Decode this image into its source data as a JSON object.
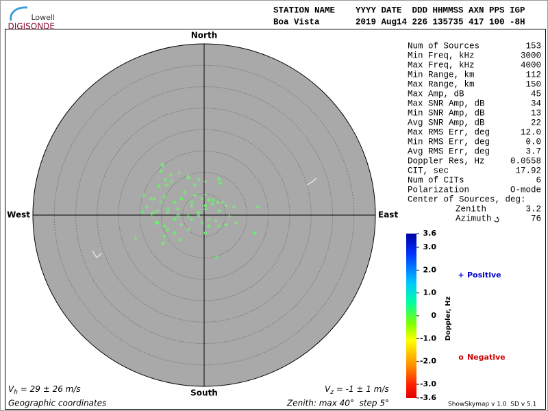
{
  "logo": {
    "top": "Lowell",
    "bottom": "DIGISONDE"
  },
  "header": {
    "labels": "STATION NAME    YYYY DATE  DDD HHMMSS AXN PPS IGP",
    "values": "Boa Vista       2019 Aug14 226 135735 417 100 -8H"
  },
  "stats": {
    "rows": [
      {
        "label": "Num of Sources",
        "value": "153"
      },
      {
        "label": "Min Freq, kHz",
        "value": "3000"
      },
      {
        "label": "Max Freq, kHz",
        "value": "4000"
      },
      {
        "label": "Min Range, km",
        "value": "112"
      },
      {
        "label": "Max Range, km",
        "value": "150"
      },
      {
        "label": "Max Amp, dB",
        "value": "45"
      },
      {
        "label": "Max SNR Amp, dB",
        "value": "34"
      },
      {
        "label": "Min SNR Amp, dB",
        "value": "13"
      },
      {
        "label": "Avg SNR Amp, dB",
        "value": "22"
      },
      {
        "label": "Max RMS Err, deg",
        "value": "12.0"
      },
      {
        "label": "Min RMS Err, deg",
        "value": "0.0"
      },
      {
        "label": "Avg RMS Err, deg",
        "value": "3.7"
      },
      {
        "label": "Doppler Res, Hz",
        "value": "0.0558"
      },
      {
        "label": "CIT, sec",
        "value": "17.92"
      },
      {
        "label": "Num of CITs",
        "value": "6"
      },
      {
        "label": "Polarization",
        "value": "O-mode"
      }
    ],
    "center_title": "Center of Sources, deg:",
    "center": [
      {
        "label": "Zenith",
        "value": "3.2"
      },
      {
        "label": "Azimuth",
        "value": "76"
      }
    ]
  },
  "chart_data": {
    "type": "skymap",
    "directions": {
      "north": "North",
      "south": "South",
      "east": "East",
      "west": "West"
    },
    "xlim": [
      -40,
      40
    ],
    "ylim": [
      -40,
      40
    ],
    "rings": [
      5,
      10,
      15,
      20,
      25,
      30,
      35
    ],
    "background": "#a9a9a9",
    "series": [
      {
        "name": "Positive",
        "marker": "+",
        "color": "#0000cc",
        "point_color": "#66ff66",
        "x": [
          -9.6,
          -10.1,
          -7.7,
          -5.8,
          -3.7,
          0.3,
          3.8,
          -8.8,
          -10.6,
          -14.1,
          -11.7,
          -9.3,
          -6.9,
          -4.5,
          -2.1,
          -0.5,
          1.1,
          3.2,
          5.1,
          12.6,
          -13.3,
          -10.9,
          -8.5,
          -6.1,
          -2.9,
          -1.3,
          0.3,
          1.9,
          3.5,
          5.9,
          -11.2,
          -9.3,
          -6.9,
          -5.3,
          -2.9,
          -0.5,
          1.1,
          2.7,
          5.1,
          -9.3,
          -6.9,
          -5.6,
          -16.0,
          -9.6,
          11.8,
          2.9,
          -3.7,
          -7.7,
          -12.2,
          -14.4,
          -2.1,
          0.3
        ],
        "y": [
          11.4,
          10.2,
          9.4,
          9.9,
          8.6,
          7.8,
          7.4,
          7.0,
          6.7,
          4.6,
          3.8,
          4.2,
          3.0,
          5.4,
          4.6,
          3.8,
          3.5,
          3.0,
          2.2,
          1.9,
          1.9,
          1.0,
          0.6,
          1.4,
          2.2,
          0.6,
          1.4,
          2.6,
          1.0,
          -0.2,
          -1.8,
          -2.6,
          -1.0,
          -2.2,
          -1.0,
          -1.8,
          -2.6,
          -1.3,
          -2.2,
          -5.0,
          -4.2,
          -5.8,
          -5.4,
          -6.6,
          -4.2,
          -9.8,
          -0.2,
          7.8,
          0.2,
          0.6,
          7.0,
          4.8
        ]
      },
      {
        "name": "Negative",
        "marker": "o",
        "color": "#cc0000",
        "point_color": "#66ff66",
        "x": [
          -9.8,
          -9.0,
          3.5,
          -3.7,
          -12.5,
          -10.1,
          -8.5,
          -5.3,
          -2.9,
          0.3,
          2.2,
          4.3,
          7.0,
          1.1,
          -1.3,
          -6.1,
          -10.9,
          -8.5,
          -3.7,
          0.3,
          3.5,
          7.5,
          -11.7,
          -1.3
        ],
        "y": [
          11.8,
          8.3,
          8.3,
          9.0,
          3.8,
          3.0,
          1.4,
          3.8,
          3.0,
          2.2,
          3.5,
          3.0,
          1.9,
          -1.0,
          -0.2,
          -0.2,
          -1.8,
          -3.4,
          -3.4,
          -4.2,
          -2.6,
          -1.8,
          0.6,
          8.3
        ]
      }
    ],
    "colorbar": {
      "title": "Doppler, Hz",
      "clim": [
        -3.6,
        3.6
      ],
      "ticks": [
        3.6,
        {
          "value": 3,
          "label": "3.0"
        },
        {
          "value": 2,
          "label": "2.0"
        },
        {
          "value": 1,
          "label": "1.0"
        },
        0,
        {
          "value": -1,
          "label": "-1.0"
        },
        {
          "value": -2,
          "label": "-2.0"
        },
        {
          "value": -3,
          "label": "-3.0"
        },
        -3.6
      ]
    }
  },
  "footer": {
    "vh_symbol": "V",
    "vh_sub": "h",
    "vh_text": " = 29 ± 26 m/s",
    "vz_symbol": "V",
    "vz_sub": "z",
    "vz_text": " = -1 ± 1 m/s",
    "coords": "Geographic coordinates",
    "zenith": "Zenith: max 40°  step 5°",
    "version": "ShowSkymap v 1.0  SD v 5.1"
  }
}
